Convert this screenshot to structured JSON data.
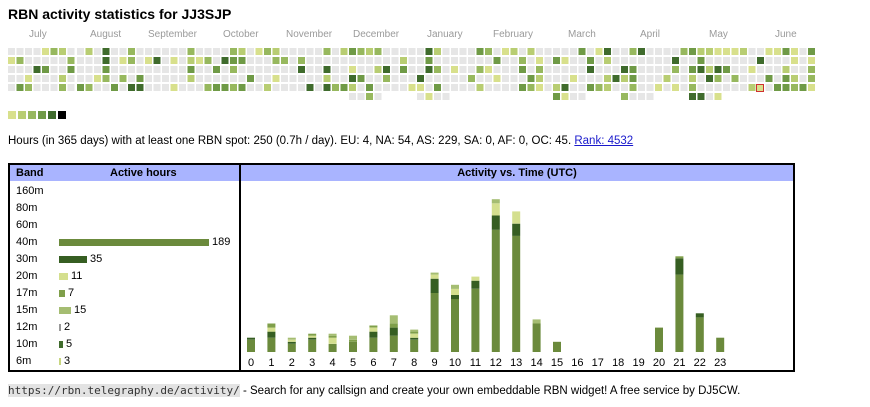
{
  "title": "RBN activity statistics for JJ3SJP",
  "heatmap": {
    "months": [
      "July",
      "August",
      "September",
      "October",
      "November",
      "December",
      "January",
      "February",
      "March",
      "April",
      "May",
      "June"
    ],
    "palette": [
      "#e6e6e6",
      "#d8e08c",
      "#b8cd72",
      "#97b85e",
      "#6f9a46",
      "#3f6b2c",
      "#000000"
    ],
    "today_outline": "#d03030"
  },
  "summary": {
    "text": "Hours (in 365 days) with at least one RBN spot: 250 (0.7h / day). EU: 4, NA: 54, AS: 229, SA: 0, AF: 0, OC: 45.",
    "rank_link": "Rank: 4532"
  },
  "band_table": {
    "header_band": "Band",
    "header_hours": "Active hours",
    "max_hours": 189,
    "rows": [
      {
        "band": "160m",
        "hours": null,
        "color": ""
      },
      {
        "band": "80m",
        "hours": null,
        "color": ""
      },
      {
        "band": "60m",
        "hours": null,
        "color": ""
      },
      {
        "band": "40m",
        "hours": 189,
        "color": "#6b8a3c"
      },
      {
        "band": "30m",
        "hours": 35,
        "color": "#365e22"
      },
      {
        "band": "20m",
        "hours": 11,
        "color": "#d4df8e"
      },
      {
        "band": "17m",
        "hours": 7,
        "color": "#7f9f4a"
      },
      {
        "band": "15m",
        "hours": 15,
        "color": "#a5bd72"
      },
      {
        "band": "12m",
        "hours": 2,
        "color": "#999999"
      },
      {
        "band": "10m",
        "hours": 5,
        "color": "#3f6b2c"
      },
      {
        "band": "6m",
        "hours": 3,
        "color": "#c8d680"
      }
    ]
  },
  "activity_chart": {
    "title": "Activity vs. Time (UTC)",
    "hours": [
      "0",
      "1",
      "2",
      "3",
      "4",
      "5",
      "6",
      "7",
      "8",
      "9",
      "10",
      "11",
      "12",
      "13",
      "14",
      "15",
      "16",
      "17",
      "18",
      "19",
      "20",
      "21",
      "22",
      "23"
    ],
    "band_colors": {
      "40m": "#6b8a3c",
      "30m": "#365e22",
      "20m": "#d4df8e",
      "17m": "#7f9f4a",
      "15m": "#a5bd72"
    },
    "series": [
      {
        "band": "40m",
        "values": [
          6,
          7,
          4,
          6,
          4,
          5,
          7,
          8,
          6,
          29,
          26,
          31,
          60,
          57,
          14,
          5,
          0,
          0,
          0,
          0,
          12,
          38,
          17,
          7
        ]
      },
      {
        "band": "30m",
        "values": [
          1,
          3,
          1,
          1,
          0,
          0,
          3,
          4,
          1,
          7,
          2,
          4,
          7,
          6,
          0,
          0,
          0,
          0,
          0,
          0,
          0,
          8,
          2,
          0
        ]
      },
      {
        "band": "20m",
        "values": [
          0,
          2,
          1,
          1,
          3,
          0,
          2,
          0,
          2,
          2,
          3,
          2,
          6,
          6,
          0,
          0,
          0,
          0,
          0,
          0,
          0,
          0,
          0,
          0
        ]
      },
      {
        "band": "17m",
        "values": [
          0,
          2,
          0,
          1,
          1,
          1,
          1,
          2,
          1,
          0,
          0,
          0,
          0,
          0,
          0,
          0,
          0,
          0,
          0,
          0,
          0,
          1,
          0,
          0
        ]
      },
      {
        "band": "15m",
        "values": [
          0,
          0,
          1,
          0,
          1,
          2,
          0,
          4,
          1,
          1,
          2,
          0,
          2,
          0,
          2,
          0,
          0,
          0,
          0,
          0,
          0,
          0,
          0,
          0
        ]
      }
    ],
    "ymax": 81
  },
  "footer": {
    "url": "https://rbn.telegraphy.de/activity/",
    "text": " - Search for any callsign and create your own embeddable RBN widget! A free service by DJ5CW."
  }
}
